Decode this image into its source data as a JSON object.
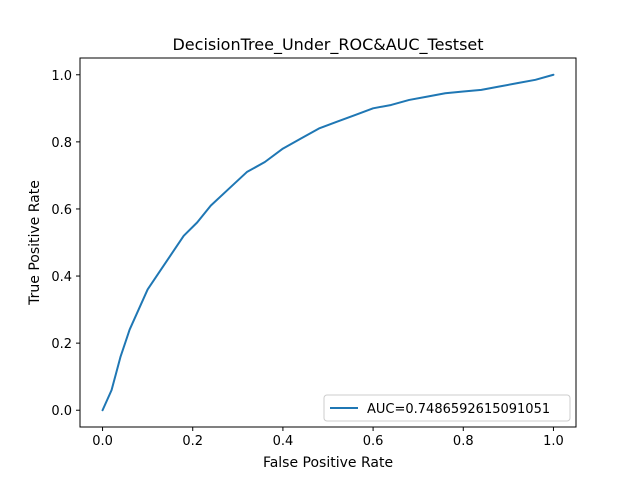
{
  "chart_data": {
    "type": "line",
    "title": "DecisionTree_Under_ROC&AUC_Testset",
    "xlabel": "False Positive Rate",
    "ylabel": "True Positive Rate",
    "xlim": [
      -0.05,
      1.05
    ],
    "ylim": [
      -0.05,
      1.05
    ],
    "xticks": [
      0.0,
      0.2,
      0.4,
      0.6,
      0.8,
      1.0
    ],
    "yticks": [
      0.0,
      0.2,
      0.4,
      0.6,
      0.8,
      1.0
    ],
    "xtick_labels": [
      "0.0",
      "0.2",
      "0.4",
      "0.6",
      "0.8",
      "1.0"
    ],
    "ytick_labels": [
      "0.0",
      "0.2",
      "0.4",
      "0.6",
      "0.8",
      "1.0"
    ],
    "grid": false,
    "legend": {
      "placement": "lower-right",
      "entries": [
        "AUC=0.7486592615091051"
      ]
    },
    "series": [
      {
        "name": "AUC=0.7486592615091051",
        "color": "#1f77b4",
        "x": [
          0.0,
          0.02,
          0.03,
          0.04,
          0.05,
          0.06,
          0.08,
          0.1,
          0.13,
          0.15,
          0.18,
          0.21,
          0.24,
          0.28,
          0.32,
          0.36,
          0.4,
          0.44,
          0.48,
          0.52,
          0.56,
          0.6,
          0.64,
          0.68,
          0.72,
          0.76,
          0.8,
          0.84,
          0.88,
          0.92,
          0.96,
          1.0
        ],
        "y": [
          0.0,
          0.06,
          0.11,
          0.16,
          0.2,
          0.24,
          0.3,
          0.36,
          0.42,
          0.46,
          0.52,
          0.56,
          0.61,
          0.66,
          0.71,
          0.74,
          0.78,
          0.81,
          0.84,
          0.86,
          0.88,
          0.9,
          0.91,
          0.925,
          0.935,
          0.945,
          0.95,
          0.955,
          0.965,
          0.975,
          0.985,
          1.0
        ]
      }
    ]
  }
}
